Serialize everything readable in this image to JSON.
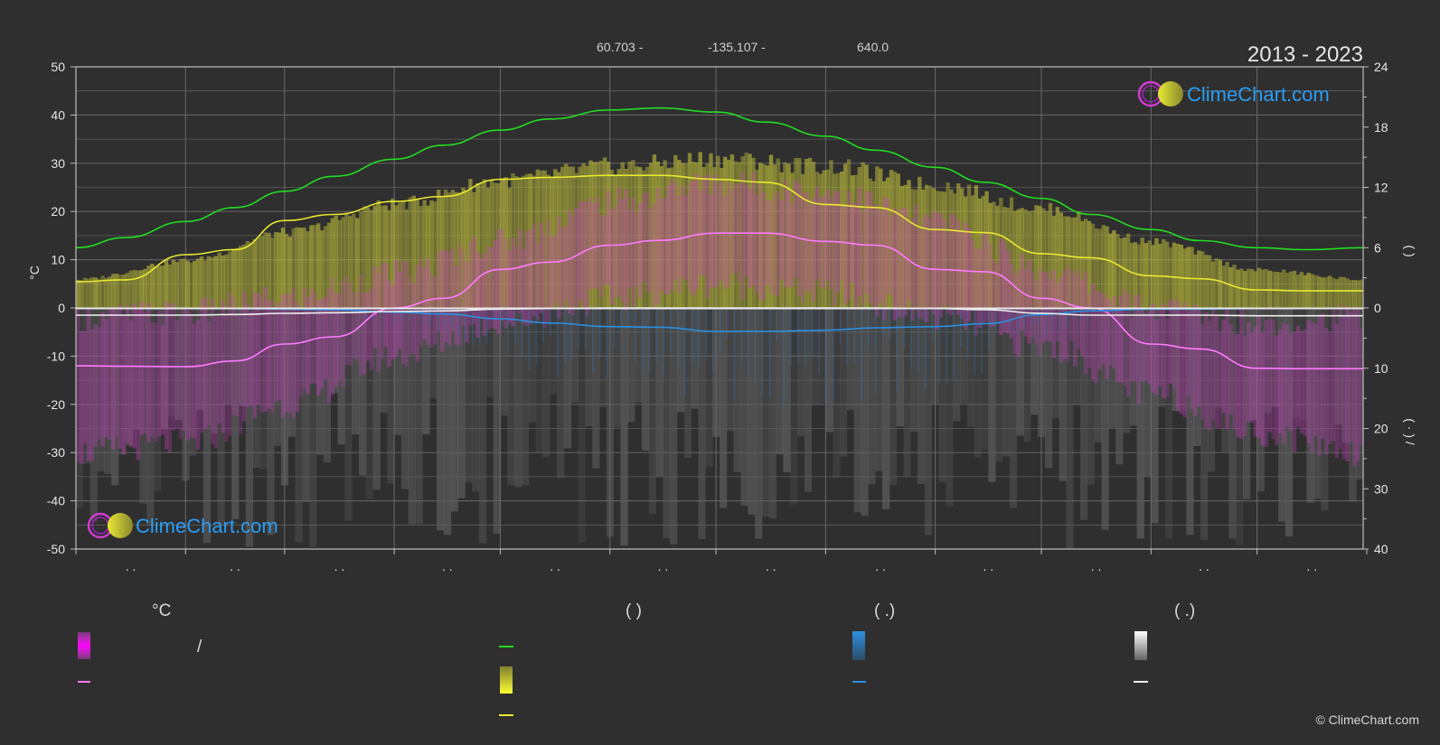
{
  "header": {
    "latitude": "60.703 -",
    "longitude": "-135.107 -",
    "elevation": "640.0",
    "period": "2013 - 2023"
  },
  "brand": {
    "name": "ClimeChart.com"
  },
  "copyright": "© ClimeChart.com",
  "colors": {
    "background": "#2f2f2f",
    "daylight": "#22dd22",
    "sunshine": "#e8e832",
    "temp_max": "#ff7bff",
    "rain": "#2b8fe0",
    "snow": "#f0f0f0",
    "brand": "#2a9df4"
  },
  "chart_data": {
    "type": "line",
    "xlabel": "",
    "x_tick_labels": [
      ". .",
      ". .",
      ". .",
      ". .",
      ". .",
      ". .",
      ". .",
      ". .",
      ". .",
      ". .",
      ". .",
      ". ."
    ],
    "y_left": {
      "label": "°C",
      "lim": [
        -50,
        50
      ],
      "ticks": [
        50,
        40,
        30,
        20,
        10,
        0,
        -10,
        -20,
        -30,
        -40,
        -50
      ]
    },
    "y_right_top": {
      "label": "(     )",
      "lim": [
        0,
        24
      ],
      "ticks": [
        24,
        18,
        12,
        6,
        0
      ]
    },
    "y_right_bottom": {
      "label": "(   ·   )   /",
      "lim": [
        0,
        40
      ],
      "ticks": [
        0,
        10,
        20,
        30,
        40
      ]
    },
    "x_days": [
      1,
      15,
      32,
      46,
      60,
      74,
      91,
      105,
      121,
      135,
      152,
      166,
      182,
      196,
      213,
      227,
      244,
      258,
      274,
      288,
      305,
      319,
      335,
      349,
      365
    ],
    "series": [
      {
        "key": "daylight",
        "axis": "hours",
        "values": [
          6.0,
          7.0,
          8.6,
          10.0,
          11.6,
          13.1,
          14.8,
          16.2,
          17.7,
          18.8,
          19.7,
          19.9,
          19.5,
          18.5,
          17.1,
          15.7,
          14.0,
          12.5,
          10.9,
          9.3,
          7.8,
          6.7,
          6.0,
          5.8,
          6.0
        ]
      },
      {
        "key": "sunshine",
        "axis": "hours",
        "values": [
          2.6,
          2.8,
          5.3,
          5.8,
          8.7,
          9.3,
          10.6,
          11.1,
          12.8,
          13.0,
          13.2,
          13.2,
          12.8,
          12.5,
          10.3,
          10.0,
          7.8,
          7.5,
          5.4,
          5.0,
          3.2,
          2.9,
          1.8,
          1.7,
          1.7
        ]
      },
      {
        "key": "temp_max",
        "axis": "celsius",
        "values": [
          -12.0,
          -12.1,
          -12.2,
          -11.0,
          -7.5,
          -6.0,
          0.0,
          2.0,
          8.0,
          9.5,
          13.0,
          14.0,
          15.5,
          15.5,
          13.8,
          13.0,
          8.0,
          7.5,
          2.0,
          0.0,
          -7.5,
          -8.5,
          -12.5,
          -12.6,
          -12.6
        ]
      },
      {
        "key": "rain_daily",
        "axis": "precip_mm",
        "values": [
          0.1,
          0.1,
          0.1,
          0.1,
          0.2,
          0.3,
          0.7,
          1.0,
          1.8,
          2.5,
          3.1,
          3.2,
          3.9,
          3.9,
          3.7,
          3.3,
          3.1,
          2.6,
          1.1,
          0.5,
          0.2,
          0.2,
          0.1,
          0.1,
          0.1
        ]
      },
      {
        "key": "snow_daily",
        "axis": "precip_mm",
        "values": [
          1.2,
          1.2,
          1.2,
          1.1,
          0.9,
          0.8,
          0.6,
          0.5,
          0.2,
          0.1,
          0.0,
          0.0,
          0.0,
          0.0,
          0.0,
          0.0,
          0.1,
          0.3,
          0.9,
          1.2,
          1.2,
          1.2,
          1.3,
          1.3,
          1.3
        ]
      }
    ],
    "bands": {
      "temp_range": {
        "x_days": [
          1,
          32,
          60,
          91,
          121,
          152,
          182,
          213,
          244,
          274,
          305,
          335,
          365
        ],
        "min": [
          -30,
          -28,
          -20,
          -10,
          -3,
          2,
          5,
          3,
          -2,
          -8,
          -18,
          -26,
          -30
        ],
        "max": [
          -2,
          -1,
          2,
          7,
          14,
          22,
          26,
          24,
          18,
          8,
          0,
          -3,
          -2
        ]
      },
      "sunshine_envelope": {
        "x_days": [
          1,
          32,
          60,
          91,
          121,
          152,
          182,
          213,
          244,
          274,
          305,
          335,
          365
        ],
        "max_hours": [
          3,
          5,
          8,
          11,
          13.5,
          15,
          15.8,
          15,
          13,
          10.5,
          7,
          4,
          3
        ]
      }
    }
  },
  "legend": {
    "col1": {
      "header": "°C",
      "items": [
        {
          "name": "legend-temp-range",
          "label": "/"
        },
        {
          "name": "legend-temp-max",
          "label": ""
        }
      ]
    },
    "col2": {
      "header": "(          )",
      "items": [
        {
          "name": "legend-daylight",
          "label": ""
        },
        {
          "name": "legend-sunshine-range",
          "label": ""
        },
        {
          "name": "legend-sunshine-avg",
          "label": ""
        }
      ]
    },
    "col3": {
      "header": "(   .)",
      "items": [
        {
          "name": "legend-rain-bar",
          "label": ""
        },
        {
          "name": "legend-rain-avg",
          "label": ""
        }
      ]
    },
    "col4": {
      "header": "(   .)",
      "items": [
        {
          "name": "legend-snow-bar",
          "label": ""
        },
        {
          "name": "legend-snow-avg",
          "label": ""
        }
      ]
    }
  }
}
